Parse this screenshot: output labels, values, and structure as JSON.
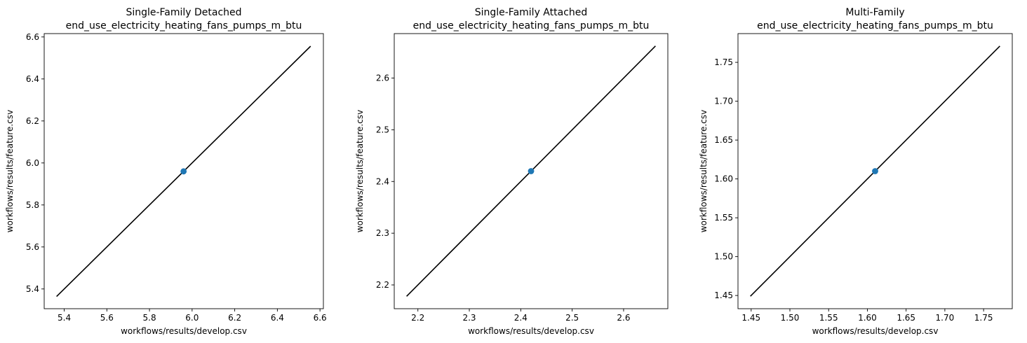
{
  "chart_data": [
    {
      "type": "scatter",
      "title": "Single-Family Detached\nend_use_electricity_heating_fans_pumps_m_btu",
      "title_lines": [
        "Single-Family Detached",
        "end_use_electricity_heating_fans_pumps_m_btu"
      ],
      "xlabel": "workflows/results/develop.csv",
      "ylabel": "workflows/results/feature.csv",
      "xlim": [
        5.306,
        6.616
      ],
      "ylim": [
        5.306,
        6.616
      ],
      "xticks": [
        5.4,
        5.6,
        5.8,
        6.0,
        6.2,
        6.4,
        6.6
      ],
      "xtick_labels": [
        "5.4",
        "5.6",
        "5.8",
        "6.0",
        "6.2",
        "6.4",
        "6.6"
      ],
      "yticks": [
        5.4,
        5.6,
        5.8,
        6.0,
        6.2,
        6.4,
        6.6
      ],
      "ytick_labels": [
        "5.4",
        "5.6",
        "5.8",
        "6.0",
        "6.2",
        "6.4",
        "6.6"
      ],
      "points": [
        {
          "x": 5.96,
          "y": 5.96
        }
      ],
      "reference_line": {
        "x": [
          5.364,
          6.556
        ],
        "y": [
          5.364,
          6.556
        ],
        "color": "#000000"
      },
      "point_color": "#1f77b4",
      "grid": false
    },
    {
      "type": "scatter",
      "title": "Single-Family Attached\nend_use_electricity_heating_fans_pumps_m_btu",
      "title_lines": [
        "Single-Family Attached",
        "end_use_electricity_heating_fans_pumps_m_btu"
      ],
      "xlabel": "workflows/results/develop.csv",
      "ylabel": "workflows/results/feature.csv",
      "xlim": [
        2.154,
        2.686
      ],
      "ylim": [
        2.154,
        2.686
      ],
      "xticks": [
        2.2,
        2.3,
        2.4,
        2.5,
        2.6
      ],
      "xtick_labels": [
        "2.2",
        "2.3",
        "2.4",
        "2.5",
        "2.6"
      ],
      "yticks": [
        2.2,
        2.3,
        2.4,
        2.5,
        2.6
      ],
      "ytick_labels": [
        "2.2",
        "2.3",
        "2.4",
        "2.5",
        "2.6"
      ],
      "points": [
        {
          "x": 2.42,
          "y": 2.42
        }
      ],
      "reference_line": {
        "x": [
          2.178,
          2.662
        ],
        "y": [
          2.178,
          2.662
        ],
        "color": "#000000"
      },
      "point_color": "#1f77b4",
      "grid": false
    },
    {
      "type": "scatter",
      "title": "Multi-Family\nend_use_electricity_heating_fans_pumps_m_btu",
      "title_lines": [
        "Multi-Family",
        "end_use_electricity_heating_fans_pumps_m_btu"
      ],
      "xlabel": "workflows/results/develop.csv",
      "ylabel": "workflows/results/feature.csv",
      "xlim": [
        1.433,
        1.787
      ],
      "ylim": [
        1.433,
        1.787
      ],
      "xticks": [
        1.45,
        1.5,
        1.55,
        1.6,
        1.65,
        1.7,
        1.75
      ],
      "xtick_labels": [
        "1.45",
        "1.50",
        "1.55",
        "1.60",
        "1.65",
        "1.70",
        "1.75"
      ],
      "yticks": [
        1.45,
        1.5,
        1.55,
        1.6,
        1.65,
        1.7,
        1.75
      ],
      "ytick_labels": [
        "1.45",
        "1.50",
        "1.55",
        "1.60",
        "1.65",
        "1.70",
        "1.75"
      ],
      "points": [
        {
          "x": 1.61,
          "y": 1.61
        }
      ],
      "reference_line": {
        "x": [
          1.449,
          1.771
        ],
        "y": [
          1.449,
          1.771
        ],
        "color": "#000000"
      },
      "point_color": "#1f77b4",
      "grid": false
    }
  ]
}
